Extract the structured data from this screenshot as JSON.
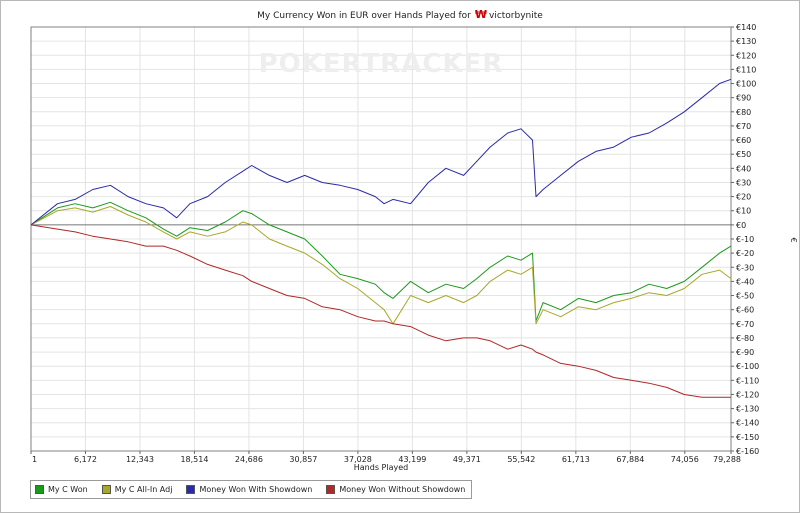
{
  "chart_data": {
    "type": "line",
    "title": "My Currency Won in EUR over Hands Played for",
    "player": "victorbynite",
    "watermark": "POKERTRACKER",
    "xlabel": "Hands Played",
    "ylabel": "€",
    "x_ticks": [
      "1",
      "6,172",
      "12,343",
      "18,514",
      "24,686",
      "30,857",
      "37,028",
      "43,199",
      "49,371",
      "55,542",
      "61,713",
      "67,884",
      "74,056",
      "79,288"
    ],
    "x_tick_values": [
      1,
      6172,
      12343,
      18514,
      24686,
      30857,
      37028,
      43199,
      49371,
      55542,
      61713,
      67884,
      74056,
      79288
    ],
    "y_ticks": [
      "€140",
      "€130",
      "€120",
      "€110",
      "€100",
      "€90",
      "€80",
      "€70",
      "€60",
      "€50",
      "€40",
      "€30",
      "€20",
      "€10",
      "€0",
      "€-10",
      "€-20",
      "€-30",
      "€-40",
      "€-50",
      "€-60",
      "€-70",
      "€-80",
      "€-90",
      "€-100",
      "€-110",
      "€-120",
      "€-130",
      "€-140",
      "€-150",
      "€-160"
    ],
    "xlim": [
      1,
      79288
    ],
    "ylim": [
      -160,
      140
    ],
    "grid": true,
    "legend_position": "bottom-left",
    "series": [
      {
        "name": "My C Won",
        "color": "#1a9a1a",
        "x": [
          1,
          3000,
          5000,
          7000,
          9000,
          11000,
          13000,
          15000,
          16500,
          18000,
          20000,
          22000,
          24000,
          25000,
          27000,
          29000,
          31000,
          33000,
          35000,
          37000,
          39000,
          40000,
          41000,
          43000,
          45000,
          47000,
          49000,
          50500,
          52000,
          54000,
          55500,
          56800,
          57200,
          58000,
          60000,
          62000,
          64000,
          66000,
          68000,
          70000,
          72000,
          74000,
          76000,
          78000,
          79288
        ],
        "y": [
          0,
          12,
          15,
          12,
          16,
          10,
          5,
          -3,
          -8,
          -2,
          -4,
          2,
          10,
          8,
          0,
          -5,
          -10,
          -22,
          -35,
          -38,
          -42,
          -48,
          -52,
          -40,
          -48,
          -42,
          -45,
          -38,
          -30,
          -22,
          -25,
          -20,
          -68,
          -55,
          -60,
          -52,
          -55,
          -50,
          -48,
          -42,
          -45,
          -40,
          -30,
          -20,
          -15
        ]
      },
      {
        "name": "My C All-In Adj",
        "color": "#a8a828",
        "x": [
          1,
          3000,
          5000,
          7000,
          9000,
          11000,
          13000,
          15000,
          16500,
          18000,
          20000,
          22000,
          24000,
          25000,
          27000,
          29000,
          31000,
          33000,
          35000,
          37000,
          39000,
          40000,
          41000,
          43000,
          45000,
          47000,
          49000,
          50500,
          52000,
          54000,
          55500,
          56800,
          57200,
          58000,
          60000,
          62000,
          64000,
          66000,
          68000,
          70000,
          72000,
          74000,
          76000,
          78000,
          79288
        ],
        "y": [
          0,
          10,
          12,
          9,
          13,
          7,
          2,
          -5,
          -10,
          -5,
          -8,
          -5,
          2,
          0,
          -10,
          -15,
          -20,
          -28,
          -38,
          -45,
          -55,
          -60,
          -70,
          -50,
          -55,
          -50,
          -55,
          -50,
          -40,
          -32,
          -35,
          -30,
          -70,
          -60,
          -65,
          -58,
          -60,
          -55,
          -52,
          -48,
          -50,
          -45,
          -35,
          -32,
          -38
        ]
      },
      {
        "name": "Money Won With Showdown",
        "color": "#2a2aaa",
        "x": [
          1,
          3000,
          5000,
          7000,
          9000,
          11000,
          13000,
          15000,
          16500,
          18000,
          20000,
          22000,
          24000,
          25000,
          27000,
          29000,
          31000,
          33000,
          35000,
          37000,
          39000,
          40000,
          41000,
          43000,
          45000,
          47000,
          49000,
          50500,
          52000,
          54000,
          55500,
          56800,
          57200,
          58000,
          60000,
          62000,
          64000,
          66000,
          68000,
          70000,
          72000,
          74000,
          76000,
          78000,
          79288
        ],
        "y": [
          0,
          15,
          18,
          25,
          28,
          20,
          15,
          12,
          5,
          15,
          20,
          30,
          38,
          42,
          35,
          30,
          35,
          30,
          28,
          25,
          20,
          15,
          18,
          15,
          30,
          40,
          35,
          45,
          55,
          65,
          68,
          60,
          20,
          25,
          35,
          45,
          52,
          55,
          62,
          65,
          72,
          80,
          90,
          100,
          103
        ]
      },
      {
        "name": "Money Won Without Showdown",
        "color": "#b02828",
        "x": [
          1,
          3000,
          5000,
          7000,
          9000,
          11000,
          13000,
          15000,
          16500,
          18000,
          20000,
          22000,
          24000,
          25000,
          27000,
          29000,
          31000,
          33000,
          35000,
          37000,
          39000,
          40000,
          41000,
          43000,
          45000,
          47000,
          49000,
          50500,
          52000,
          54000,
          55500,
          56800,
          57200,
          58000,
          60000,
          62000,
          64000,
          66000,
          68000,
          70000,
          72000,
          74000,
          76000,
          78000,
          79288
        ],
        "y": [
          0,
          -3,
          -5,
          -8,
          -10,
          -12,
          -15,
          -15,
          -18,
          -22,
          -28,
          -32,
          -36,
          -40,
          -45,
          -50,
          -52,
          -58,
          -60,
          -65,
          -68,
          -68,
          -70,
          -72,
          -78,
          -82,
          -80,
          -80,
          -82,
          -88,
          -85,
          -88,
          -90,
          -92,
          -98,
          -100,
          -103,
          -108,
          -110,
          -112,
          -115,
          -120,
          -122,
          -122,
          -122
        ]
      }
    ]
  }
}
